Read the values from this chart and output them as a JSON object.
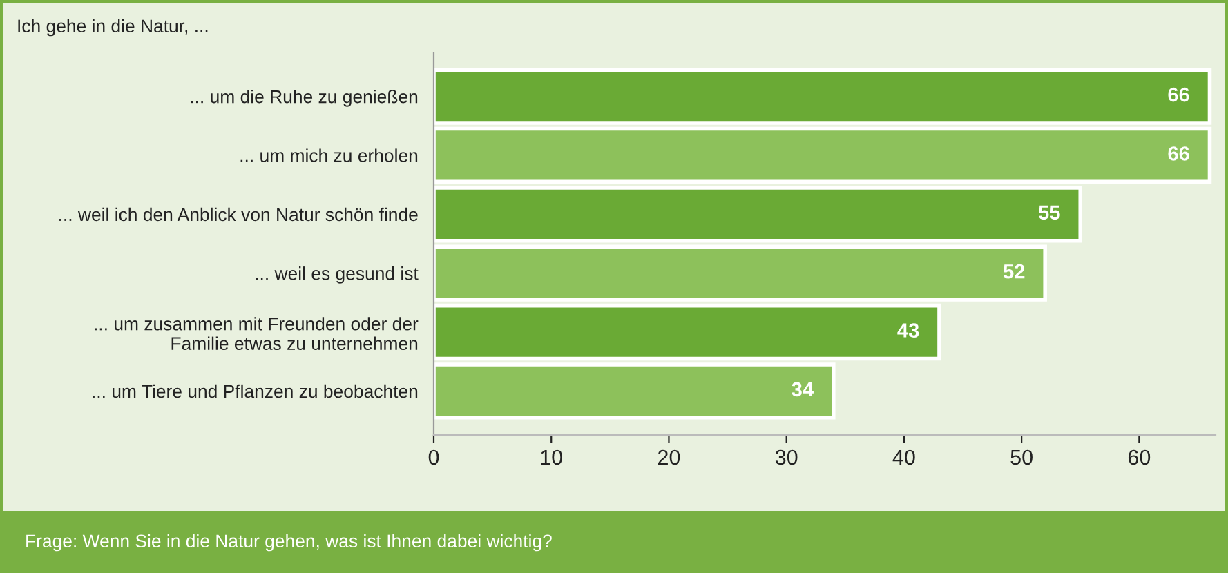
{
  "chart_data": {
    "type": "bar",
    "orientation": "horizontal",
    "title": "Ich gehe in die Natur, ...",
    "categories": [
      "... um die Ruhe zu genießen",
      "... um mich zu erholen",
      "... weil ich den Anblick von Natur schön finde",
      "... weil es gesund ist",
      "... um zusammen mit Freunden oder der\nFamilie etwas zu unternehmen",
      "... um Tiere und Pflanzen zu beobachten"
    ],
    "values": [
      66,
      66,
      55,
      52,
      43,
      34
    ],
    "colors": [
      "#6aaa35",
      "#8dc15b",
      "#6aaa35",
      "#8dc15b",
      "#6aaa35",
      "#8dc15b"
    ],
    "xlim": [
      0,
      66.5
    ],
    "xticks": [
      0,
      10,
      20,
      30,
      40,
      50,
      60
    ],
    "data_labels": true,
    "grid": false,
    "legend": false,
    "annotations": [
      "Frage: Wenn Sie in die Natur gehen, was ist Ihnen dabei wichtig?"
    ]
  }
}
